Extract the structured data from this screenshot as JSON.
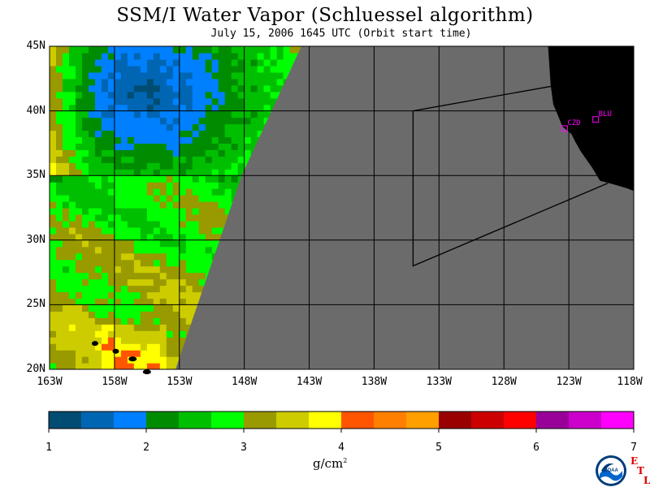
{
  "title": "SSM/I Water Vapor (Schluessel algorithm)",
  "subtitle": "July 15, 2006  1645 UTC  (Orbit start time)",
  "map": {
    "lat_labels": [
      "45N",
      "40N",
      "35N",
      "30N",
      "25N",
      "20N"
    ],
    "lon_labels": [
      "163W",
      "158W",
      "153W",
      "148W",
      "143W",
      "138W",
      "133W",
      "128W",
      "123W",
      "118W"
    ],
    "stations": [
      {
        "name": "CZD",
        "lon": -123.3,
        "lat": 38.6
      },
      {
        "name": "BLU",
        "lon": -120.9,
        "lat": 39.3
      }
    ],
    "no_data_color": "#6b6b6b",
    "land_color": "#000000"
  },
  "colorbar": {
    "unit": "g/cm",
    "unit_exp": "2",
    "min": 1,
    "max": 7,
    "tick_labels": [
      "1",
      "2",
      "3",
      "4",
      "5",
      "6",
      "7"
    ],
    "colors": [
      "#004c73",
      "#0066b3",
      "#0080ff",
      "#008c00",
      "#00bf00",
      "#00ff00",
      "#999900",
      "#cccc00",
      "#ffff00",
      "#ff5500",
      "#ff7f00",
      "#ff9f00",
      "#990000",
      "#cc0000",
      "#ff0000",
      "#990099",
      "#cc00cc",
      "#ff00ff"
    ]
  },
  "logo": {
    "text": "NOAA",
    "etl_letters": [
      "E",
      "T",
      "L"
    ]
  }
}
